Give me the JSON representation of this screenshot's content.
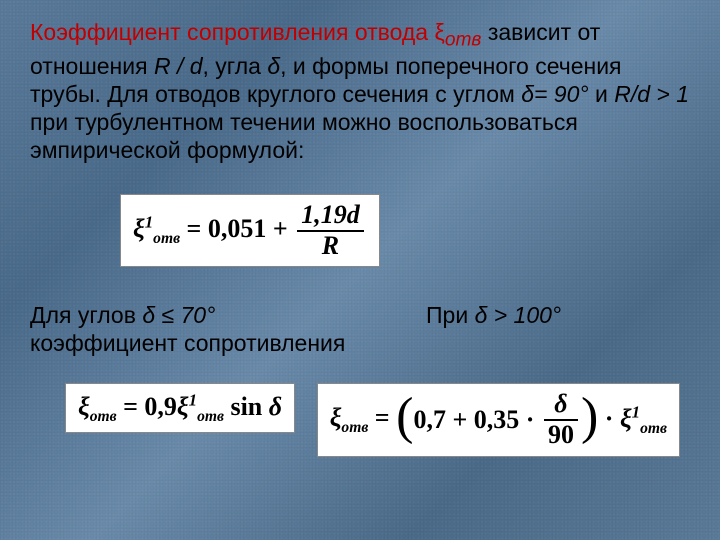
{
  "slide": {
    "background_gradient": [
      "#5a7a9a",
      "#4a6a8a",
      "#6a8aaa",
      "#4a6a88",
      "#5a7a98"
    ],
    "text_color": "#000000",
    "accent_color": "#c00000",
    "font_size_body": 23,
    "font_family_body": "Arial",
    "font_family_formula": "Times New Roman"
  },
  "para": {
    "t1": "Коэффициент сопротивления отвода ",
    "xi": "ξ",
    "xi_sub": "отв",
    "t2": " зависит от отношения ",
    "rd": "R / d",
    "t3": ", угла ",
    "delta1": "δ",
    "t4": ", и формы поперечного сечения трубы. Для отводов круглого сечения с углом ",
    "cond1": "δ= 90°",
    "t5": " и ",
    "cond2": "R/d > 1",
    "t6": " при турбулентном течении можно воспользоваться эмпирической формулой:"
  },
  "formula1": {
    "lhs_sym": "ξ",
    "lhs_sup": "1",
    "lhs_sub": "отв",
    "eq": " = 0,051 + ",
    "num": "1,19d",
    "den": "R"
  },
  "row2": {
    "left1": "Для углов ",
    "left_cond": "δ ≤ 70°",
    "left2": " коэффициент сопротивления",
    "right1": "При ",
    "right_cond": "δ > 100°"
  },
  "formula2": {
    "lhs_sym": "ξ",
    "lhs_sub": "отв",
    "eq": " = 0,9",
    "r_sym": "ξ",
    "r_sup": "1",
    "r_sub": "отв",
    "sin": " sin ",
    "delta": "δ"
  },
  "formula3": {
    "lhs_sym": "ξ",
    "lhs_sub": "отв",
    "eq": " = ",
    "inner1": "0,7 + 0,35 · ",
    "num": "δ",
    "den": "90",
    "dot": " · ",
    "r_sym": "ξ",
    "r_sup": "1",
    "r_sub": "отв"
  }
}
